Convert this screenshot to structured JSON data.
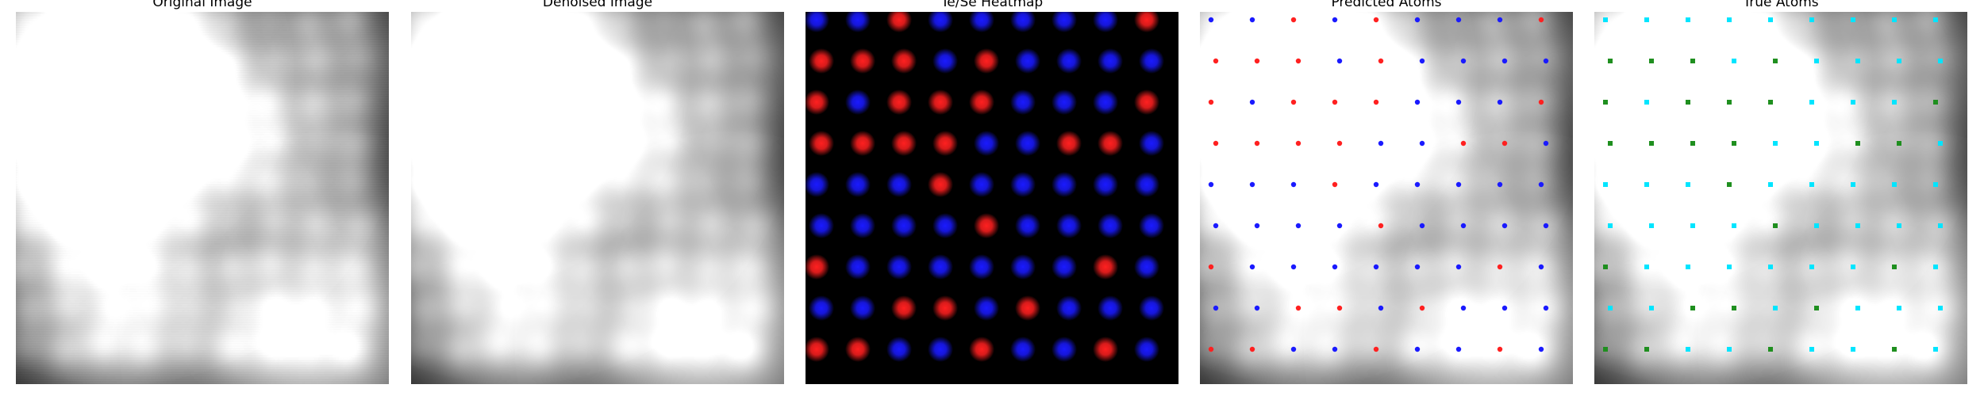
{
  "panels": [
    {
      "title": "Original Image",
      "kind": "original"
    },
    {
      "title": "Denoised Image",
      "kind": "denoised"
    },
    {
      "title": "Te/Se Heatmap",
      "kind": "heatmap"
    },
    {
      "title": "Predicted Atoms",
      "kind": "predicted"
    },
    {
      "title": "True Atoms",
      "kind": "true"
    }
  ],
  "colors": {
    "red_atom": "#ff2020",
    "blue_atom": "#1a1aff",
    "true_cyan": "#00e5ff",
    "true_green": "#1f8f1f",
    "heatmap_bg": "#000000"
  },
  "lattice": {
    "rows": 9,
    "cols": 9
  },
  "heatmap_labels": [
    "B",
    "B",
    "R",
    "B",
    "B",
    "B",
    "B",
    "B",
    "R",
    "R",
    "R",
    "R",
    "B",
    "R",
    "B",
    "B",
    "B",
    "B",
    "R",
    "B",
    "R",
    "R",
    "R",
    "B",
    "B",
    "B",
    "R",
    "R",
    "R",
    "R",
    "R",
    "B",
    "B",
    "R",
    "R",
    "B",
    "B",
    "B",
    "B",
    "R",
    "B",
    "B",
    "B",
    "B",
    "B",
    "B",
    "B",
    "B",
    "B",
    "R",
    "B",
    "B",
    "B",
    "B",
    "R",
    "B",
    "B",
    "B",
    "B",
    "B",
    "B",
    "R",
    "B",
    "B",
    "B",
    "R",
    "R",
    "B",
    "R",
    "B",
    "B",
    "B",
    "R",
    "R",
    "B",
    "B",
    "R",
    "B",
    "B",
    "R",
    "B"
  ],
  "predicted_labels": [
    "B",
    "B",
    "R",
    "B",
    "R",
    "B",
    "B",
    "B",
    "R",
    "R",
    "R",
    "R",
    "B",
    "R",
    "B",
    "B",
    "B",
    "B",
    "R",
    "B",
    "R",
    "R",
    "R",
    "B",
    "B",
    "B",
    "R",
    "R",
    "R",
    "R",
    "R",
    "B",
    "B",
    "R",
    "R",
    "B",
    "B",
    "B",
    "B",
    "R",
    "B",
    "B",
    "B",
    "B",
    "B",
    "B",
    "B",
    "B",
    "B",
    "R",
    "B",
    "B",
    "B",
    "B",
    "R",
    "B",
    "B",
    "B",
    "B",
    "B",
    "B",
    "R",
    "B",
    "B",
    "B",
    "R",
    "R",
    "B",
    "R",
    "B",
    "B",
    "B",
    "R",
    "R",
    "B",
    "B",
    "R",
    "B",
    "B",
    "R",
    "B"
  ],
  "true_labels": [
    "C",
    "C",
    "C",
    "C",
    "C",
    "C",
    "C",
    "C",
    "C",
    "G",
    "G",
    "G",
    "C",
    "G",
    "C",
    "C",
    "C",
    "C",
    "G",
    "C",
    "G",
    "G",
    "G",
    "C",
    "C",
    "C",
    "G",
    "G",
    "G",
    "G",
    "G",
    "C",
    "C",
    "G",
    "G",
    "C",
    "C",
    "C",
    "C",
    "G",
    "C",
    "C",
    "C",
    "C",
    "C",
    "C",
    "C",
    "C",
    "C",
    "G",
    "C",
    "C",
    "C",
    "C",
    "G",
    "C",
    "C",
    "C",
    "C",
    "C",
    "C",
    "G",
    "C",
    "C",
    "C",
    "G",
    "G",
    "C",
    "G",
    "C",
    "C",
    "C",
    "G",
    "G",
    "C",
    "C",
    "G",
    "C",
    "C",
    "G",
    "C"
  ]
}
